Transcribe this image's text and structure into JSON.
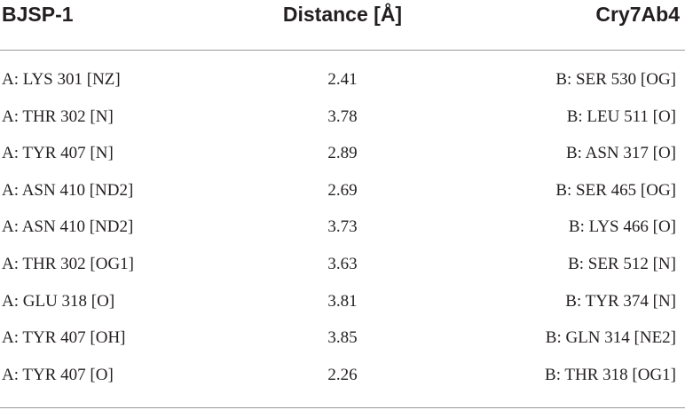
{
  "table": {
    "headers": [
      "BJSP-1",
      "Distance [Å]",
      "Cry7Ab4"
    ],
    "rows": [
      [
        "A: LYS 301 [NZ]",
        "2.41",
        "B: SER 530 [OG]"
      ],
      [
        "A: THR 302 [N]",
        "3.78",
        "B: LEU 511 [O]"
      ],
      [
        "A: TYR 407 [N]",
        "2.89",
        "B: ASN 317 [O]"
      ],
      [
        "A: ASN 410 [ND2]",
        "2.69",
        "B: SER 465 [OG]"
      ],
      [
        "A: ASN 410 [ND2]",
        "3.73",
        "B: LYS 466 [O]"
      ],
      [
        "A: THR 302 [OG1]",
        "3.63",
        "B: SER 512 [N]"
      ],
      [
        "A: GLU 318 [O]",
        "3.81",
        "B: TYR 374 [N]"
      ],
      [
        "A: TYR 407 [OH]",
        "3.85",
        "B: GLN 314 [NE2]"
      ],
      [
        "A: TYR 407 [O]",
        "2.26",
        "B: THR 318 [OG1]"
      ]
    ]
  }
}
